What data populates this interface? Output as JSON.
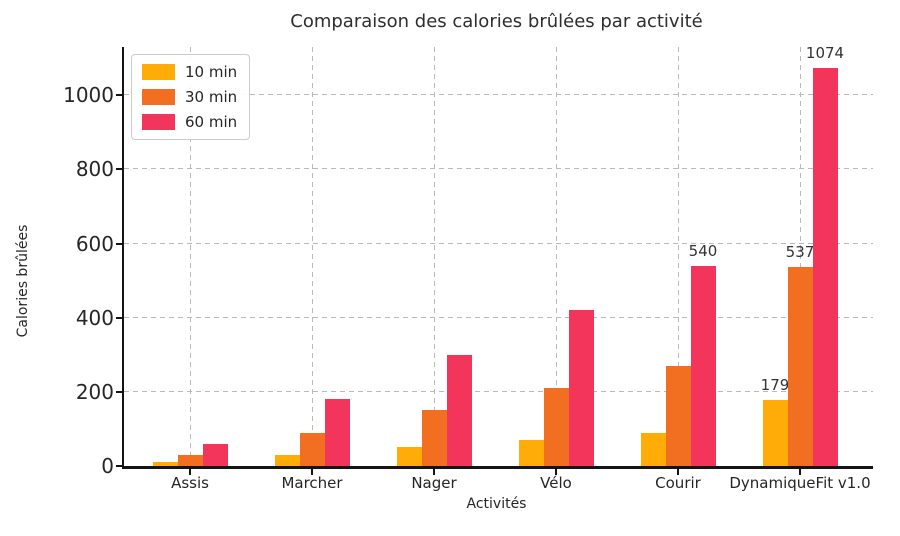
{
  "title": "Comparaison des calories brûlées par activité",
  "chart_data": {
    "type": "bar",
    "title": "Comparaison des calories brûlées par activité",
    "xlabel": "Activités",
    "ylabel": "Calories brûlées",
    "categories": [
      "Assis",
      "Marcher",
      "Nager",
      "Vélo",
      "Courir",
      "DynamiqueFit v1.0"
    ],
    "series": [
      {
        "name": "10 min",
        "color": "#FFAB08",
        "values": [
          10,
          30,
          50,
          70,
          90,
          179
        ],
        "value_label_flags": [
          0,
          0,
          0,
          0,
          0,
          1
        ]
      },
      {
        "name": "30 min",
        "color": "#F26F21",
        "values": [
          30,
          90,
          150,
          210,
          270,
          537
        ],
        "value_label_flags": [
          0,
          0,
          0,
          0,
          0,
          1
        ]
      },
      {
        "name": "60 min",
        "color": "#F3355C",
        "values": [
          60,
          180,
          300,
          420,
          540,
          1074
        ],
        "value_label_flags": [
          0,
          0,
          0,
          0,
          1,
          1
        ]
      }
    ],
    "visible_value_labels": [
      "540",
      "179",
      "537",
      "1074"
    ],
    "yticks": [
      0,
      200,
      400,
      600,
      800,
      1000
    ],
    "ylim": [
      0,
      1130
    ],
    "grid": true,
    "grid_style": "dashed",
    "legend_position": "upper left",
    "legend_entries": [
      "10 min",
      "30 min",
      "60 min"
    ]
  }
}
